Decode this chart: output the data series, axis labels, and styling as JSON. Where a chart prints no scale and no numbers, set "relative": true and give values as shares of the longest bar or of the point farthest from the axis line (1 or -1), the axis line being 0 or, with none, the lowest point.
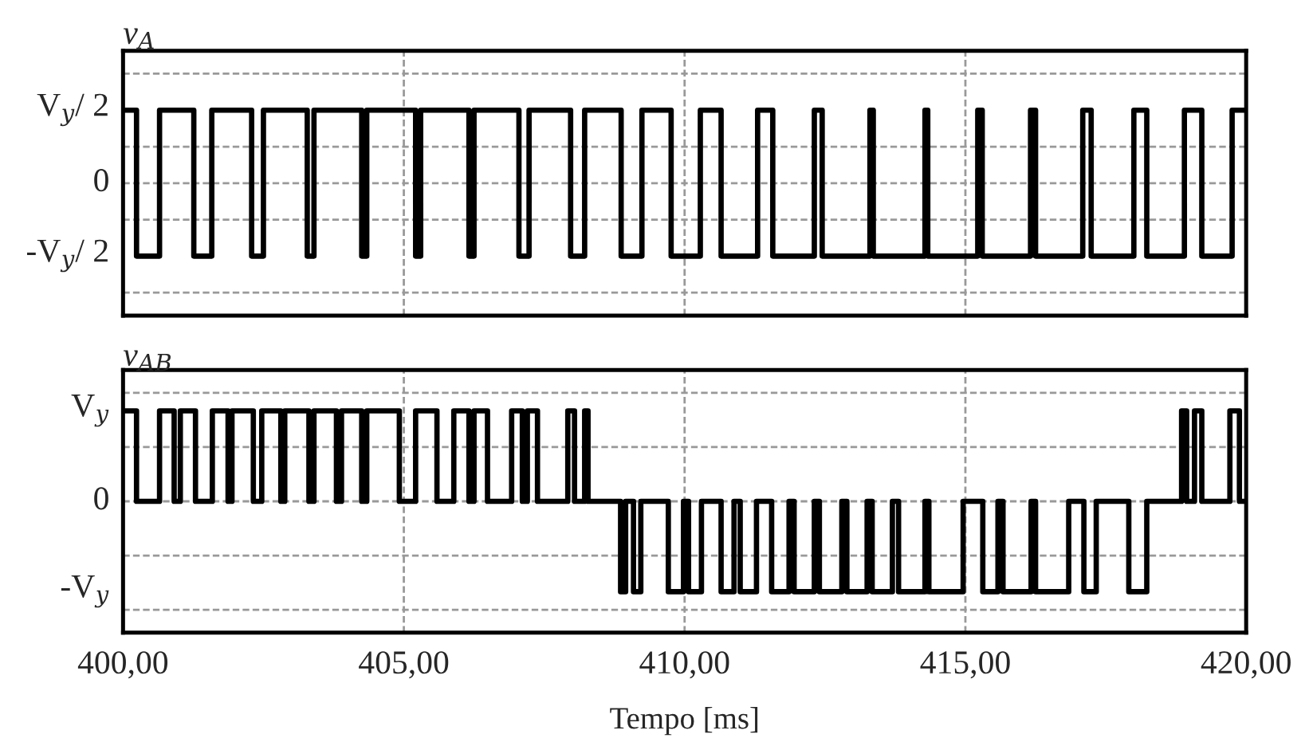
{
  "chart_data": [
    {
      "type": "step",
      "title": "v$_{A}$",
      "relative": true,
      "x": [
        400,
        400.24,
        400.65,
        401.26,
        401.58,
        402.29,
        402.5,
        403.28,
        403.4,
        404.25,
        404.34,
        405.21,
        405.3,
        406.16,
        406.25,
        407.05,
        407.23,
        407.97,
        408.22,
        408.87,
        409.24,
        409.76,
        410.28,
        410.65,
        411.3,
        411.57,
        412.31,
        412.45,
        413.3,
        413.36,
        414.28,
        414.33,
        415.22,
        415.3,
        416.16,
        416.25,
        417.09,
        417.24,
        418.0,
        418.23,
        418.9,
        419.21,
        419.75,
        420
      ],
      "series": [
        {
          "color": "#000000",
          "values": [
            1,
            -1,
            1,
            -1,
            1,
            -1,
            1,
            -1,
            1,
            -1,
            1,
            -1,
            1,
            -1,
            1,
            -1,
            1,
            -1,
            1,
            -1,
            1,
            -1,
            1,
            -1,
            1,
            -1,
            1,
            -1,
            1,
            -1,
            1,
            -1,
            1,
            -1,
            1,
            -1,
            1,
            -1,
            1,
            -1,
            1,
            -1,
            1,
            1
          ]
        }
      ],
      "xlim": [
        400,
        420
      ],
      "xticks": [
        400,
        405,
        410,
        415,
        420
      ],
      "annotations": [
        "V$_{y}$/ 2",
        "0",
        "-V$_{y}$/ 2"
      ],
      "ref_lines": [
        {
          "axis": "y",
          "value": 1.5,
          "color": "#999999",
          "line_style": "dashed"
        },
        {
          "axis": "y",
          "value": 0.5,
          "color": "#999999",
          "line_style": "dashed"
        },
        {
          "axis": "y",
          "value": 0,
          "color": "#999999",
          "line_style": "dashed"
        },
        {
          "axis": "y",
          "value": -0.5,
          "color": "#999999",
          "line_style": "dashed"
        },
        {
          "axis": "y",
          "value": -1.5,
          "color": "#999999",
          "line_style": "dashed"
        }
      ],
      "grid": "x",
      "tick_labels": false
    },
    {
      "type": "step",
      "title": "v$_{AB}$",
      "xlabel": "Tempo [ms]",
      "relative": true,
      "x": [
        400,
        400.24,
        400.65,
        400.91,
        401.02,
        401.29,
        401.59,
        401.87,
        401.94,
        402.32,
        402.47,
        402.81,
        402.88,
        403.31,
        403.4,
        403.8,
        403.89,
        404.25,
        404.34,
        404.92,
        405.21,
        405.59,
        405.89,
        406.16,
        406.25,
        406.49,
        406.92,
        407.11,
        407.2,
        407.38,
        407.92,
        408.04,
        408.22,
        408.28,
        408.86,
        408.95,
        409.09,
        409.22,
        409.71,
        409.98,
        410.07,
        410.3,
        410.65,
        410.88,
        410.99,
        411.28,
        411.55,
        411.86,
        411.95,
        412.31,
        412.4,
        412.8,
        412.89,
        413.25,
        413.34,
        413.7,
        413.81,
        414.28,
        414.35,
        414.96,
        415.31,
        415.58,
        415.67,
        416.17,
        416.25,
        416.84,
        417.11,
        417.33,
        417.91,
        418.23,
        418.85,
        418.94,
        419.08,
        419.21,
        419.71,
        419.88,
        420
      ],
      "series": [
        {
          "color": "#000000",
          "values": [
            1,
            0,
            1,
            0,
            1,
            0,
            1,
            0,
            1,
            0,
            1,
            0,
            1,
            0,
            1,
            0,
            1,
            0,
            1,
            0,
            1,
            0,
            1,
            0,
            1,
            0,
            1,
            0,
            1,
            0,
            1,
            0,
            1,
            0,
            -1,
            0,
            -1,
            0,
            -1,
            0,
            -1,
            0,
            -1,
            0,
            -1,
            0,
            -1,
            0,
            -1,
            0,
            -1,
            0,
            -1,
            0,
            -1,
            0,
            -1,
            0,
            -1,
            0,
            -1,
            0,
            -1,
            0,
            -1,
            0,
            -1,
            0,
            -1,
            0,
            1,
            0,
            1,
            0,
            1,
            0,
            0
          ]
        }
      ],
      "xlim": [
        400,
        420
      ],
      "xticks": [
        {
          "value": 400,
          "label": "400,00"
        },
        {
          "value": 405,
          "label": "405,00"
        },
        {
          "value": 410,
          "label": "410,00"
        },
        {
          "value": 415,
          "label": "415,00"
        },
        {
          "value": 420,
          "label": "420,00"
        }
      ],
      "annotations": [
        "V$_{y}$",
        "0",
        "-V$_{y}$"
      ],
      "ref_lines": [
        {
          "axis": "y",
          "value": 1.2,
          "color": "#999999",
          "line_style": "dashed"
        },
        {
          "axis": "y",
          "value": 0.6,
          "color": "#999999",
          "line_style": "dashed"
        },
        {
          "axis": "y",
          "value": 0,
          "color": "#999999",
          "line_style": "dashed"
        },
        {
          "axis": "y",
          "value": -0.6,
          "color": "#999999",
          "line_style": "dashed"
        },
        {
          "axis": "y",
          "value": -1.2,
          "color": "#999999",
          "line_style": "dashed"
        }
      ],
      "grid": "x",
      "tick_labels": "x"
    }
  ]
}
